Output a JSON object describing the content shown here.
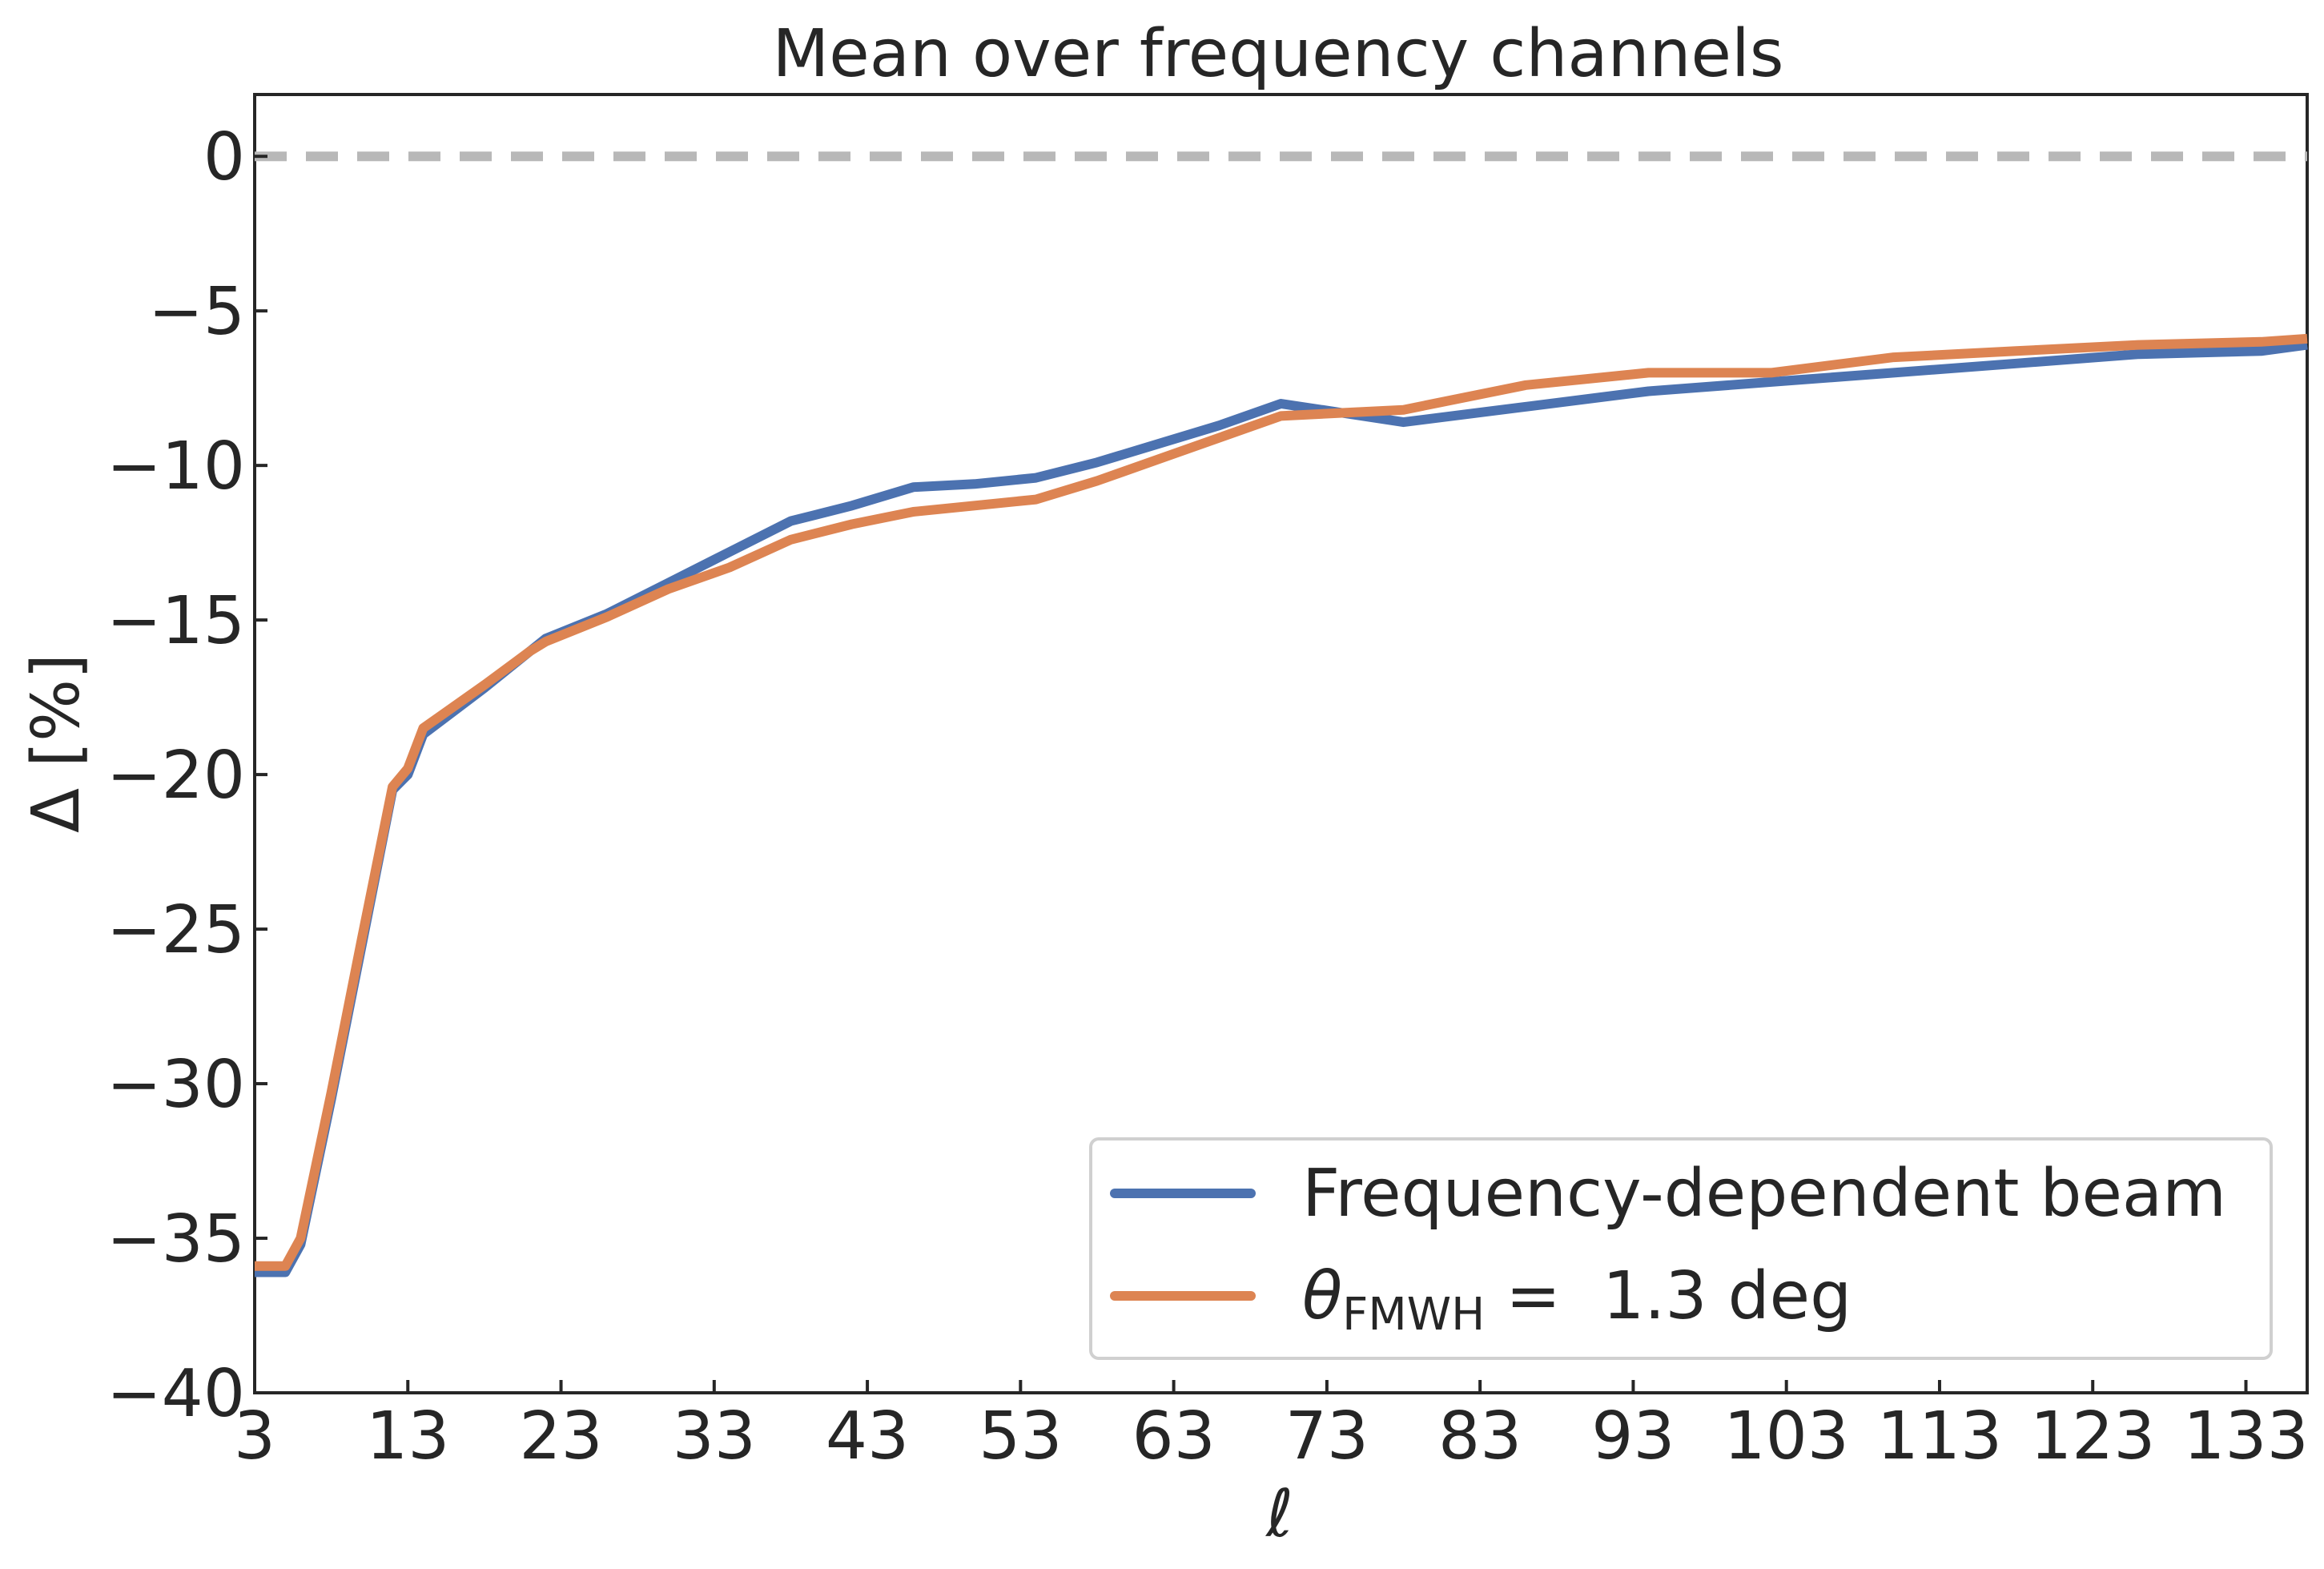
{
  "chart_data": {
    "type": "line",
    "title": "Mean over frequency channels",
    "xlabel": "ℓ",
    "ylabel": "Δ [%]",
    "xlim": [
      3,
      137
    ],
    "ylim": [
      -40,
      2
    ],
    "xticks": [
      3,
      13,
      23,
      33,
      43,
      53,
      63,
      73,
      83,
      93,
      103,
      113,
      123,
      133
    ],
    "xtick_labels": [
      "3",
      "13",
      "23",
      "33",
      "43",
      "53",
      "63",
      "73",
      "83",
      "93",
      "103",
      "113",
      "123",
      "133"
    ],
    "yticks": [
      0,
      -5,
      -10,
      -15,
      -20,
      -25,
      -30,
      -35,
      -40
    ],
    "ytick_labels": [
      "0",
      "−5",
      "−10",
      "−15",
      "−20",
      "−25",
      "−30",
      "−35",
      "−40"
    ],
    "grid": false,
    "legend_position": "bottom-right",
    "reference_line": {
      "y": 0,
      "style": "dashed",
      "color": "#b8b8b8"
    },
    "series": [
      {
        "name": "Frequency-dependent beam",
        "color": "#4c72b0",
        "x": [
          3,
          5,
          6,
          8,
          10,
          12,
          13,
          14,
          18,
          21,
          22,
          26,
          30,
          34,
          38,
          42,
          46,
          50,
          54,
          58,
          62,
          66,
          70,
          74,
          78,
          86,
          94,
          102,
          110,
          118,
          126,
          134,
          137
        ],
        "y": [
          -36.1,
          -36.1,
          -35.2,
          -30.5,
          -25.5,
          -20.5,
          -20.0,
          -18.7,
          -17.2,
          -16.0,
          -15.6,
          -14.8,
          -13.8,
          -12.8,
          -11.8,
          -11.3,
          -10.7,
          -10.6,
          -10.4,
          -9.9,
          -9.3,
          -8.7,
          -8.0,
          -8.3,
          -8.6,
          -8.1,
          -7.6,
          -7.3,
          -7.0,
          -6.7,
          -6.4,
          -6.3,
          -6.1
        ]
      },
      {
        "name": "θFMWH = 1.3 deg",
        "color": "#dd8452",
        "x": [
          3,
          5,
          6,
          8,
          10,
          12,
          13,
          14,
          18,
          21,
          22,
          26,
          30,
          34,
          38,
          42,
          46,
          50,
          54,
          58,
          62,
          66,
          70,
          74,
          78,
          86,
          94,
          102,
          110,
          118,
          126,
          134,
          137
        ],
        "y": [
          -35.9,
          -35.9,
          -35.0,
          -30.3,
          -25.3,
          -20.4,
          -19.8,
          -18.5,
          -17.1,
          -16.0,
          -15.7,
          -14.9,
          -14.0,
          -13.3,
          -12.4,
          -11.9,
          -11.5,
          -11.3,
          -11.1,
          -10.5,
          -9.8,
          -9.1,
          -8.4,
          -8.3,
          -8.2,
          -7.4,
          -7.0,
          -7.0,
          -6.5,
          -6.3,
          -6.1,
          -6.0,
          -5.9
        ]
      }
    ],
    "legend_entries": [
      {
        "series": 0,
        "text": "Frequency-dependent beam"
      },
      {
        "series": 1,
        "symbol": "θ",
        "sub": "FMWH",
        "rest": " =  1.3 deg"
      }
    ]
  }
}
